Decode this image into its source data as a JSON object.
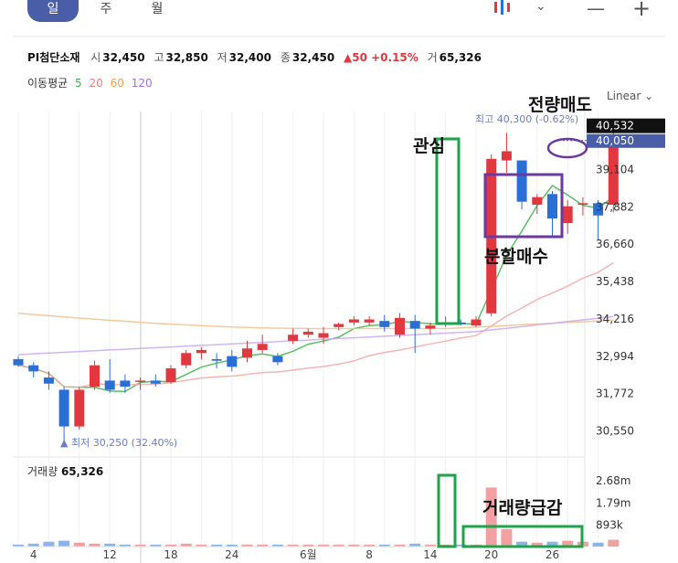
{
  "tabs": [
    {
      "label": "일",
      "active": true
    },
    {
      "label": "주",
      "active": false
    },
    {
      "label": "월",
      "active": false
    }
  ],
  "toolbar": {
    "chart_type_icon": "candlestick-icon",
    "minus_icon": "zoom-out-icon",
    "plus_icon": "zoom-in-icon"
  },
  "stock": {
    "name": "PI첨단소재",
    "open_label": "시",
    "open": "32,450",
    "high_label": "고",
    "high": "32,850",
    "low_label": "저",
    "low": "32,400",
    "close_label": "종",
    "close": "32,450",
    "change": "▲50 +0.15%",
    "volume_label": "거",
    "volume": "65,326"
  },
  "moving_average": {
    "label": "이동평균",
    "periods": [
      {
        "value": "5",
        "color": "#3cb44b"
      },
      {
        "value": "20",
        "color": "#f07f7f"
      },
      {
        "value": "60",
        "color": "#f0a050"
      },
      {
        "value": "120",
        "color": "#9b6fe0"
      }
    ]
  },
  "scale_mode": "Linear",
  "price_axis": {
    "ticks": [
      "39,104",
      "37,882",
      "36,660",
      "35,438",
      "34,216",
      "32,994",
      "31,772",
      "30,550"
    ],
    "current_price_tag": "40,532",
    "second_tag": "40,050"
  },
  "high_marker": "최고 40,300 (-0.62%)",
  "low_marker": "▲ 최저 30,250 (32.40%)",
  "volume_panel": {
    "title": "거래량",
    "value": "65,326",
    "ticks": [
      "2.68m",
      "1.79m",
      "893k"
    ]
  },
  "x_axis": {
    "ticks": [
      "4",
      "12",
      "18",
      "24",
      "6월",
      "8",
      "14",
      "20",
      "26"
    ]
  },
  "annotations": {
    "interest": "관심",
    "split_buy": "분할매수",
    "sell_all": "전량매도",
    "volume_surge": "거래량급감"
  },
  "chart_data": {
    "type": "candlestick",
    "ylim": [
      30000,
      41000
    ],
    "candles": [
      {
        "o": 32900,
        "h": 33000,
        "l": 32650,
        "c": 32700
      },
      {
        "o": 32700,
        "h": 32800,
        "l": 32300,
        "c": 32500
      },
      {
        "o": 32300,
        "h": 32500,
        "l": 31900,
        "c": 32100
      },
      {
        "o": 31900,
        "h": 32000,
        "l": 30250,
        "c": 30700
      },
      {
        "o": 30700,
        "h": 32000,
        "l": 30600,
        "c": 31900
      },
      {
        "o": 32000,
        "h": 32850,
        "l": 31900,
        "c": 32700
      },
      {
        "o": 32200,
        "h": 32900,
        "l": 31800,
        "c": 31900
      },
      {
        "o": 32200,
        "h": 32400,
        "l": 31800,
        "c": 32000
      },
      {
        "o": 32200,
        "h": 32300,
        "l": 31900,
        "c": 32200
      },
      {
        "o": 32200,
        "h": 32400,
        "l": 32000,
        "c": 32100
      },
      {
        "o": 32150,
        "h": 32700,
        "l": 32100,
        "c": 32600
      },
      {
        "o": 32700,
        "h": 33200,
        "l": 32600,
        "c": 33100
      },
      {
        "o": 33100,
        "h": 33300,
        "l": 32900,
        "c": 33200
      },
      {
        "o": 32900,
        "h": 33100,
        "l": 32600,
        "c": 32850
      },
      {
        "o": 33000,
        "h": 33200,
        "l": 32500,
        "c": 32650
      },
      {
        "o": 32950,
        "h": 33500,
        "l": 32800,
        "c": 33250
      },
      {
        "o": 33200,
        "h": 33700,
        "l": 33100,
        "c": 33400
      },
      {
        "o": 33000,
        "h": 33100,
        "l": 32700,
        "c": 32800
      },
      {
        "o": 33500,
        "h": 33900,
        "l": 33400,
        "c": 33700
      },
      {
        "o": 33700,
        "h": 33900,
        "l": 33600,
        "c": 33800
      },
      {
        "o": 33600,
        "h": 33950,
        "l": 33400,
        "c": 33750
      },
      {
        "o": 33950,
        "h": 34100,
        "l": 33850,
        "c": 34050
      },
      {
        "o": 34100,
        "h": 34300,
        "l": 34000,
        "c": 34200
      },
      {
        "o": 34100,
        "h": 34300,
        "l": 34000,
        "c": 34200
      },
      {
        "o": 34150,
        "h": 34350,
        "l": 33800,
        "c": 33950
      },
      {
        "o": 33700,
        "h": 34400,
        "l": 33600,
        "c": 34250
      },
      {
        "o": 34150,
        "h": 34350,
        "l": 33100,
        "c": 33900
      },
      {
        "o": 33900,
        "h": 34100,
        "l": 33700,
        "c": 34000
      },
      {
        "o": 34050,
        "h": 34300,
        "l": 33950,
        "c": 34100
      },
      {
        "o": 34100,
        "h": 34200,
        "l": 34000,
        "c": 34050
      },
      {
        "o": 34000,
        "h": 34300,
        "l": 33950,
        "c": 34200
      },
      {
        "o": 34400,
        "h": 39600,
        "l": 34300,
        "c": 39450
      },
      {
        "o": 39400,
        "h": 40300,
        "l": 39000,
        "c": 39700
      },
      {
        "o": 39400,
        "h": 39400,
        "l": 37800,
        "c": 38050
      },
      {
        "o": 37950,
        "h": 38300,
        "l": 37650,
        "c": 38200
      },
      {
        "o": 38300,
        "h": 38400,
        "l": 36900,
        "c": 37500
      },
      {
        "o": 37350,
        "h": 38100,
        "l": 37000,
        "c": 37900
      },
      {
        "o": 37950,
        "h": 38200,
        "l": 37600,
        "c": 38000
      },
      {
        "o": 38000,
        "h": 38100,
        "l": 36800,
        "c": 37600
      },
      {
        "o": 37950,
        "h": 40300,
        "l": 37700,
        "c": 40050
      }
    ],
    "volume": [
      0.02,
      0.03,
      0.05,
      0.06,
      0.04,
      0.03,
      0.03,
      0.02,
      0.02,
      0.02,
      0.02,
      0.03,
      0.02,
      0.02,
      0.02,
      0.02,
      0.02,
      0.02,
      0.02,
      0.02,
      0.02,
      0.02,
      0.02,
      0.02,
      0.02,
      0.02,
      0.03,
      0.02,
      0.02,
      0.02,
      0.02,
      0.61,
      0.18,
      0.05,
      0.04,
      0.05,
      0.06,
      0.05,
      0.04,
      0.07
    ],
    "volume_ylim": [
      0,
      0.85
    ]
  }
}
